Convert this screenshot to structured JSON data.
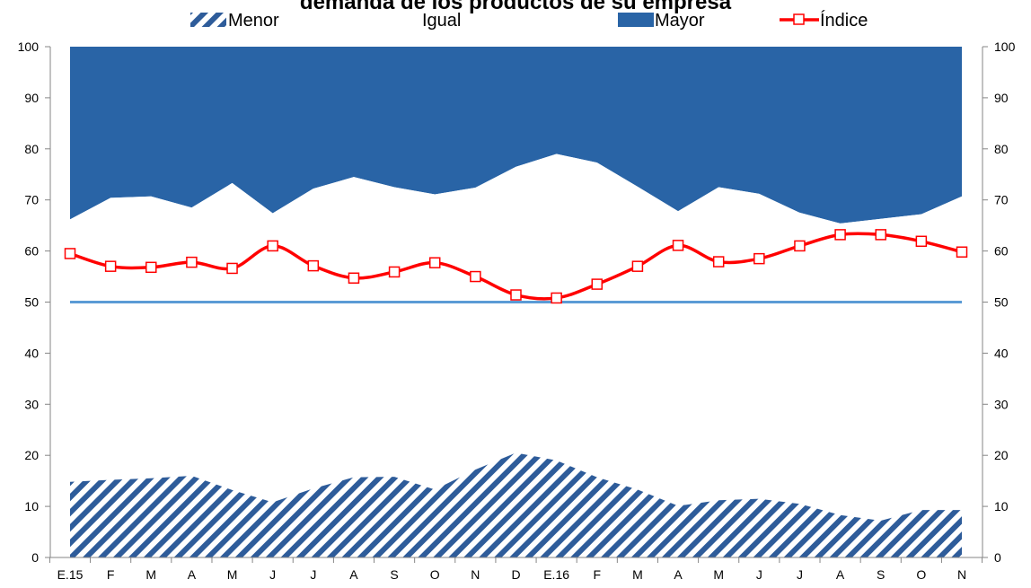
{
  "chart_data": {
    "type": "area",
    "title": "demanda de los productos de su empresa",
    "categories": [
      "E.15",
      "F",
      "M",
      "A",
      "M",
      "J",
      "J",
      "A",
      "S",
      "O",
      "N",
      "D",
      "E.16",
      "F",
      "M",
      "A",
      "M",
      "J",
      "J",
      "A",
      "S",
      "O",
      "N"
    ],
    "ylim": [
      0,
      100
    ],
    "yticks": [
      0,
      10,
      20,
      30,
      40,
      50,
      60,
      70,
      80,
      90,
      100
    ],
    "grid": false,
    "legend_position": "top",
    "series": [
      {
        "name": "Menor",
        "kind": "stacked-area-hatched",
        "color": "#2E5C9A",
        "values": [
          14.8,
          15.2,
          15.5,
          16.0,
          13.2,
          10.8,
          13.5,
          15.7,
          15.8,
          13.3,
          17.2,
          20.5,
          19.0,
          15.7,
          13.3,
          10.1,
          11.2,
          11.5,
          10.5,
          8.3,
          7.2,
          9.3,
          9.3
        ]
      },
      {
        "name": "Igual",
        "kind": "stacked-area",
        "color": "#FFFFFF",
        "values": [
          51.4,
          55.2,
          55.2,
          52.5,
          60.1,
          56.6,
          58.7,
          58.8,
          56.7,
          57.8,
          55.2,
          56.0,
          60.0,
          61.6,
          59.3,
          57.7,
          61.3,
          59.7,
          57.0,
          57.1,
          59.1,
          57.9,
          61.4
        ]
      },
      {
        "name": "Mayor",
        "kind": "stacked-area",
        "color": "#2964A6",
        "values": [
          33.8,
          29.6,
          29.3,
          31.5,
          26.7,
          32.6,
          27.8,
          25.5,
          27.5,
          28.9,
          27.6,
          23.5,
          21.0,
          22.7,
          27.4,
          32.2,
          27.5,
          28.8,
          32.5,
          34.6,
          33.7,
          32.8,
          29.3
        ]
      },
      {
        "name": "Índice",
        "kind": "line-markers",
        "color": "#FF0000",
        "values": [
          59.5,
          57.0,
          56.8,
          57.8,
          56.6,
          61.0,
          57.1,
          54.7,
          55.9,
          57.7,
          55.0,
          51.4,
          50.8,
          53.5,
          57.0,
          61.1,
          57.9,
          58.5,
          61.0,
          63.2,
          63.2,
          61.9,
          59.8
        ]
      }
    ],
    "reference_line": {
      "value": 50,
      "color": "#5B9BD5"
    }
  }
}
